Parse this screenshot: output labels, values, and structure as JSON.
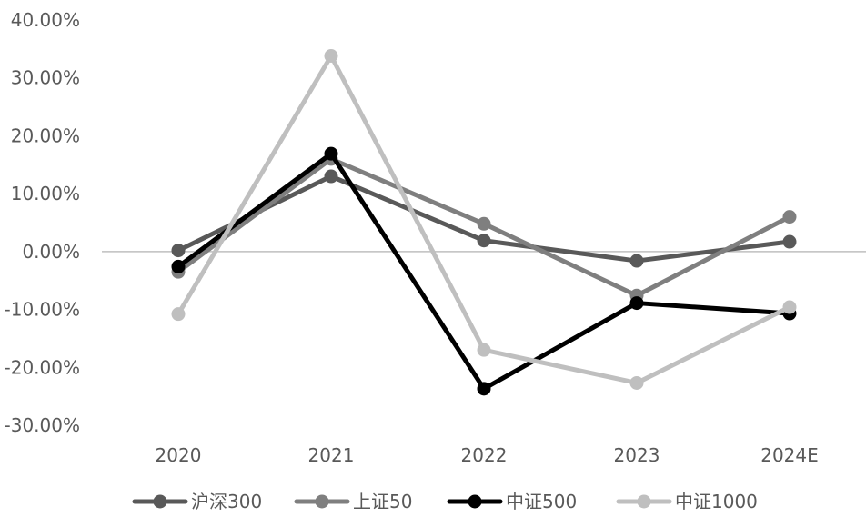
{
  "chart_data": {
    "type": "line",
    "categories": [
      "2020",
      "2021",
      "2022",
      "2023",
      "2024E"
    ],
    "series": [
      {
        "name": "沪深300",
        "color": "#595959",
        "values": [
          0.2,
          13.0,
          1.9,
          -1.6,
          1.7
        ]
      },
      {
        "name": "上证50",
        "color": "#7f7f7f",
        "values": [
          -3.5,
          16.0,
          4.8,
          -7.6,
          6.0
        ]
      },
      {
        "name": "中证500",
        "color": "#000000",
        "values": [
          -2.6,
          16.9,
          -23.7,
          -8.9,
          -10.7
        ]
      },
      {
        "name": "中证1000",
        "color": "#bfbfbf",
        "values": [
          -10.8,
          33.8,
          -17.0,
          -22.7,
          -9.6
        ]
      }
    ],
    "y_ticks": [
      "40.00%",
      "30.00%",
      "20.00%",
      "10.00%",
      "0.00%",
      "-10.00%",
      "-20.00%",
      "-30.00%"
    ],
    "ylim": [
      -30,
      40
    ],
    "grid": false,
    "zero_line": true,
    "legend": "bottom"
  }
}
